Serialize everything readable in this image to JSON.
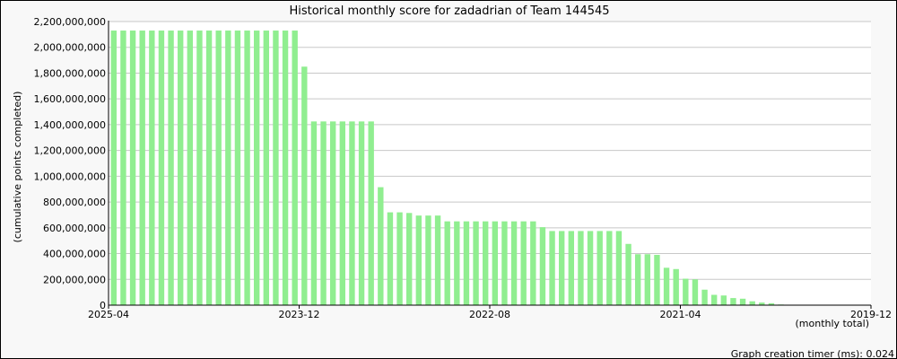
{
  "chart_data": {
    "type": "bar",
    "title": "Historical monthly score for zadadrian of Team 144545",
    "ylabel": "(cumulative points completed)",
    "xlabel": "(monthly total)",
    "ylim": [
      0,
      2200000000
    ],
    "yticks": [
      0,
      200000000,
      400000000,
      600000000,
      800000000,
      1000000000,
      1200000000,
      1400000000,
      1600000000,
      1800000000,
      2000000000,
      2200000000
    ],
    "ytick_labels": [
      "0",
      "200,000,000",
      "400,000,000",
      "600,000,000",
      "800,000,000",
      "1,000,000,000",
      "1,200,000,000",
      "1,400,000,000",
      "1,600,000,000",
      "1,800,000,000",
      "2,000,000,000",
      "2,200,000,000"
    ],
    "xtick_labels": [
      "2025-04",
      "2023-12",
      "2022-08",
      "2021-04",
      "2019-12"
    ],
    "grid": true,
    "bar_color": "#90ee90",
    "series": [
      {
        "values": [
          2130000000,
          2130000000,
          2130000000,
          2130000000,
          2130000000,
          2130000000,
          2130000000,
          2130000000,
          2130000000,
          2130000000,
          2130000000,
          2130000000,
          2130000000,
          2130000000,
          2130000000,
          2130000000,
          2130000000,
          2130000000,
          2130000000,
          2130000000,
          1850000000,
          1425000000,
          1425000000,
          1425000000,
          1425000000,
          1425000000,
          1425000000,
          1425000000,
          915000000,
          720000000,
          720000000,
          715000000,
          695000000,
          695000000,
          695000000,
          650000000,
          650000000,
          650000000,
          650000000,
          650000000,
          650000000,
          650000000,
          650000000,
          650000000,
          650000000,
          605000000,
          575000000,
          575000000,
          575000000,
          575000000,
          575000000,
          575000000,
          575000000,
          575000000,
          475000000,
          395000000,
          395000000,
          390000000,
          290000000,
          280000000,
          205000000,
          200000000,
          120000000,
          80000000,
          75000000,
          55000000,
          50000000,
          30000000,
          20000000,
          15000000,
          5000000,
          2000000,
          0,
          0,
          0,
          0,
          0,
          0,
          0,
          0
        ]
      }
    ]
  },
  "footer": {
    "timer_label": "Graph creation timer (ms): 0.024"
  }
}
